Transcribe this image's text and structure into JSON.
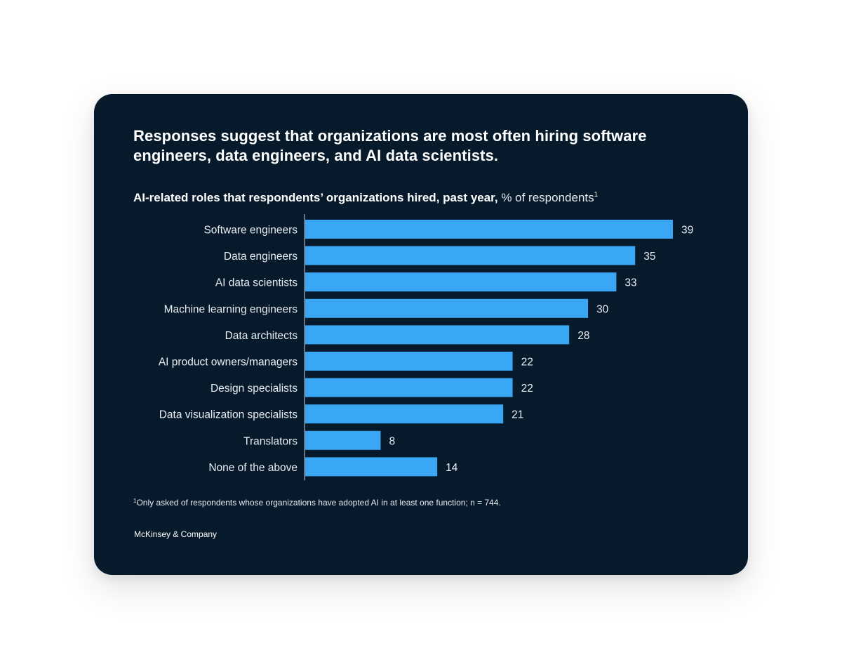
{
  "page": {
    "background": "#ffffff",
    "card_background": "#061a2b"
  },
  "header": {
    "title": "Responses suggest that organizations are most often hiring software engineers, data engineers, and AI data scientists.",
    "subtitle_bold": "AI-related roles that respondents’ organizations hired, past year,",
    "subtitle_unit": " % of respondents",
    "subtitle_marker": "1"
  },
  "footer": {
    "footnote_marker": "1",
    "footnote_text": "Only asked of respondents whose organizations have adopted AI in at least one function; n = 744.",
    "brand": "McKinsey & Company"
  },
  "chart_data": {
    "type": "bar",
    "orientation": "horizontal",
    "categories": [
      "Software engineers",
      "Data engineers",
      "AI data scientists",
      "Machine learning engineers",
      "Data architects",
      "AI product owners/managers",
      "Design specialists",
      "Data visualization specialists",
      "Translators",
      "None of the above"
    ],
    "values": [
      39,
      35,
      33,
      30,
      28,
      22,
      22,
      21,
      8,
      14
    ],
    "value_labels": [
      "39",
      "35",
      "33",
      "30",
      "28",
      "22",
      "22",
      "21",
      "8",
      "14"
    ],
    "xlim": [
      0,
      39
    ],
    "grid": false,
    "legend": "none",
    "colors": {
      "bar": "#3aa7f5",
      "axis": "#c8d3dd",
      "label": "#e8edf2"
    }
  }
}
